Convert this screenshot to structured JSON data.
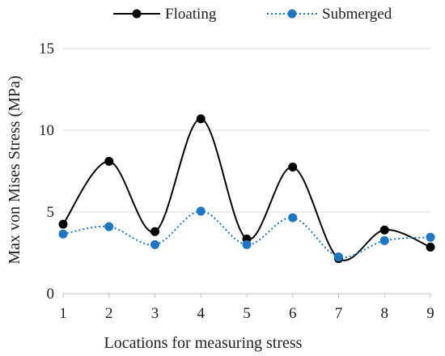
{
  "chart_data": {
    "type": "line",
    "title": "",
    "xlabel": "Locations for measuring stress",
    "ylabel": "Max von Mises Stress (MPa)",
    "x": [
      1,
      2,
      3,
      4,
      5,
      6,
      7,
      8,
      9
    ],
    "xlim": [
      1,
      9
    ],
    "ylim": [
      0,
      15
    ],
    "yticks": [
      0,
      5,
      10,
      15
    ],
    "grid": "horizontal",
    "legend_position": "top",
    "smooth": true,
    "series": [
      {
        "name": "Floating",
        "color": "#000000",
        "line_style": "solid",
        "values": [
          4.25,
          8.1,
          3.8,
          10.7,
          3.35,
          7.75,
          2.15,
          3.9,
          2.85
        ]
      },
      {
        "name": "Submerged",
        "color": "#1f77c4",
        "line_style": "dotted",
        "values": [
          3.65,
          4.1,
          3.0,
          5.05,
          3.0,
          4.65,
          2.25,
          3.25,
          3.45
        ]
      }
    ]
  }
}
